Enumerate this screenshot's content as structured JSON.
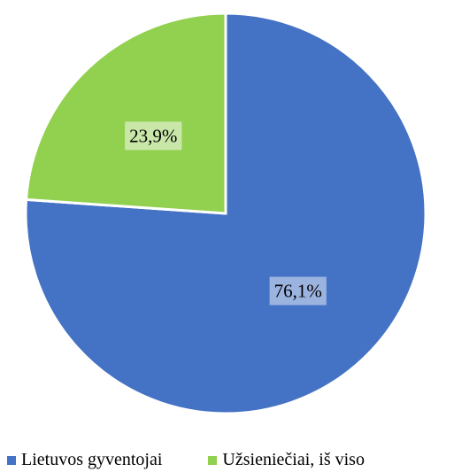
{
  "chart_data": {
    "type": "pie",
    "categories": [
      "Lietuvos gyventojai",
      "Užsieniečiai, iš viso"
    ],
    "values": [
      76.1,
      23.9
    ],
    "value_labels": [
      "76,1%",
      "23,9%"
    ],
    "colors": [
      "#4472C4",
      "#92D050"
    ],
    "label_background_colors": [
      "#9BB3DF",
      "#C9E7A9"
    ],
    "start_angle_deg": 0,
    "direction": "clockwise",
    "legend_position": "bottom"
  }
}
